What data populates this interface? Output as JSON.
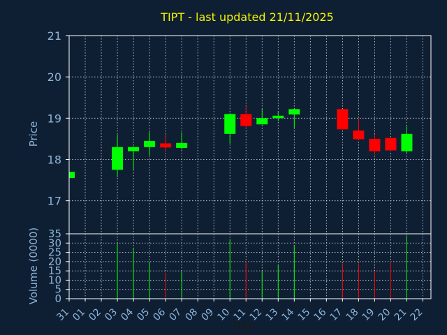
{
  "chart_data": {
    "type": "candlestick",
    "title": "TIPT - last updated 21/11/2025",
    "xlabel": "Day",
    "x_ticks": [
      "31",
      "01",
      "02",
      "03",
      "04",
      "05",
      "06",
      "07",
      "08",
      "09",
      "10",
      "11",
      "12",
      "13",
      "14",
      "15",
      "16",
      "17",
      "18",
      "19",
      "20",
      "21",
      "22"
    ],
    "price_panel": {
      "ylabel": "Price",
      "ylim": [
        16.2,
        21
      ],
      "y_ticks": [
        17,
        18,
        19,
        20,
        21
      ],
      "grid": true
    },
    "volume_panel": {
      "ylabel": "Volume (0000)",
      "ylim": [
        0,
        35
      ],
      "y_ticks": [
        0,
        5,
        10,
        15,
        20,
        25,
        30,
        35
      ],
      "grid": true
    },
    "colors": {
      "up": "#00ff00",
      "down": "#ff0000"
    },
    "candles": [
      {
        "day": "31",
        "open": 17.55,
        "high": 17.72,
        "low": 17.52,
        "close": 17.7,
        "volume": 0
      },
      {
        "day": "03",
        "open": 17.75,
        "high": 18.6,
        "low": 17.57,
        "close": 18.3,
        "volume": 30
      },
      {
        "day": "04",
        "open": 18.2,
        "high": 18.32,
        "low": 17.75,
        "close": 18.3,
        "volume": 27
      },
      {
        "day": "05",
        "open": 18.3,
        "high": 18.67,
        "low": 18.1,
        "close": 18.45,
        "volume": 20
      },
      {
        "day": "06",
        "open": 18.39,
        "high": 18.6,
        "low": 18.18,
        "close": 18.29,
        "volume": 14
      },
      {
        "day": "07",
        "open": 18.28,
        "high": 18.66,
        "low": 18.24,
        "close": 18.4,
        "volume": 15
      },
      {
        "day": "10",
        "open": 18.62,
        "high": 19.12,
        "low": 18.38,
        "close": 19.1,
        "volume": 32
      },
      {
        "day": "11",
        "open": 19.1,
        "high": 19.27,
        "low": 18.75,
        "close": 18.81,
        "volume": 20
      },
      {
        "day": "12",
        "open": 18.85,
        "high": 19.22,
        "low": 18.85,
        "close": 19.0,
        "volume": 15
      },
      {
        "day": "13",
        "open": 19.0,
        "high": 19.17,
        "low": 18.93,
        "close": 19.06,
        "volume": 18
      },
      {
        "day": "14",
        "open": 19.09,
        "high": 19.22,
        "low": 18.75,
        "close": 19.22,
        "volume": 29
      },
      {
        "day": "17",
        "open": 19.22,
        "high": 19.22,
        "low": 18.73,
        "close": 18.73,
        "volume": 19
      },
      {
        "day": "18",
        "open": 18.7,
        "high": 18.99,
        "low": 18.48,
        "close": 18.49,
        "volume": 19
      },
      {
        "day": "19",
        "open": 18.5,
        "high": 18.6,
        "low": 18.12,
        "close": 18.2,
        "volume": 15
      },
      {
        "day": "20",
        "open": 18.52,
        "high": 18.52,
        "low": 18.2,
        "close": 18.22,
        "volume": 20
      },
      {
        "day": "21",
        "open": 18.2,
        "high": 18.8,
        "low": 18.15,
        "close": 18.62,
        "volume": 34
      }
    ]
  }
}
